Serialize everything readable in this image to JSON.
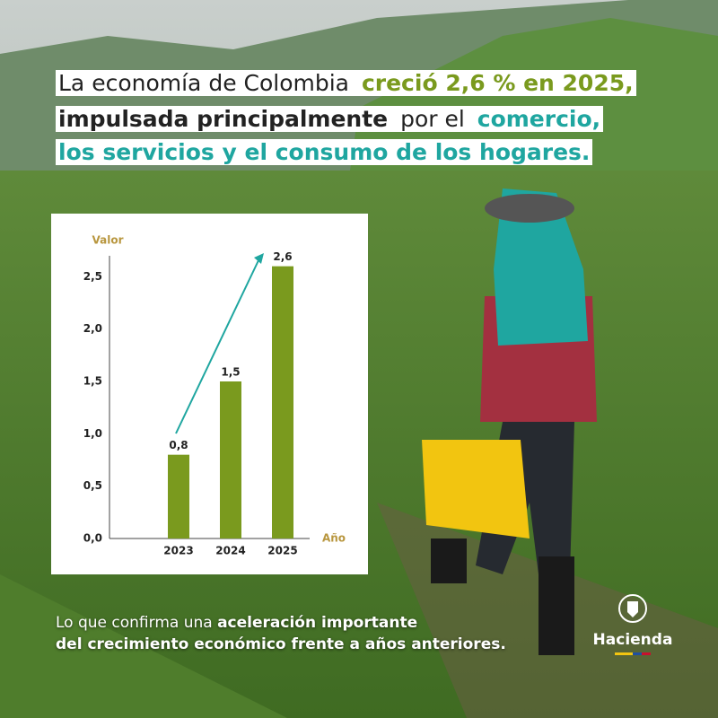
{
  "headline": {
    "lines": [
      {
        "segments": [
          {
            "text": "La economía de Colombia ",
            "style": "plain"
          },
          {
            "text": "creció 2,6 % en 2025,",
            "style": "green"
          }
        ]
      },
      {
        "segments": [
          {
            "text": "impulsada principalmente",
            "style": "bold"
          },
          {
            "text": " por el ",
            "style": "plain"
          },
          {
            "text": "comercio,",
            "style": "teal"
          }
        ]
      },
      {
        "segments": [
          {
            "text": "los servicios y el consumo de los hogares.",
            "style": "teal"
          }
        ]
      }
    ]
  },
  "chart_data": {
    "type": "bar",
    "categories": [
      "2023",
      "2024",
      "2025"
    ],
    "values": [
      0.8,
      1.5,
      2.6
    ],
    "value_labels": [
      "0,8",
      "1,5",
      "2,6"
    ],
    "color": "#7a9a1e",
    "ylabel": "Valor",
    "xlabel": "Año",
    "ylim": [
      0,
      2.7
    ],
    "yticks": [
      {
        "value": 0,
        "label": "0,0"
      },
      {
        "value": 0.5,
        "label": "0,5"
      },
      {
        "value": 1,
        "label": "1,0"
      },
      {
        "value": 1.5,
        "label": "1,5"
      },
      {
        "value": 2,
        "label": "2,0"
      },
      {
        "value": 2.5,
        "label": "2,5"
      }
    ],
    "grid": false
  },
  "footer": {
    "lines": [
      {
        "segments": [
          {
            "text": "Lo que confirma una ",
            "style": "plain"
          },
          {
            "text": "aceleración importante",
            "style": "bold"
          }
        ]
      },
      {
        "segments": [
          {
            "text": "del crecimiento económico frente a años anteriores.",
            "style": "bold"
          }
        ]
      }
    ]
  },
  "logo": {
    "text": "Hacienda"
  }
}
